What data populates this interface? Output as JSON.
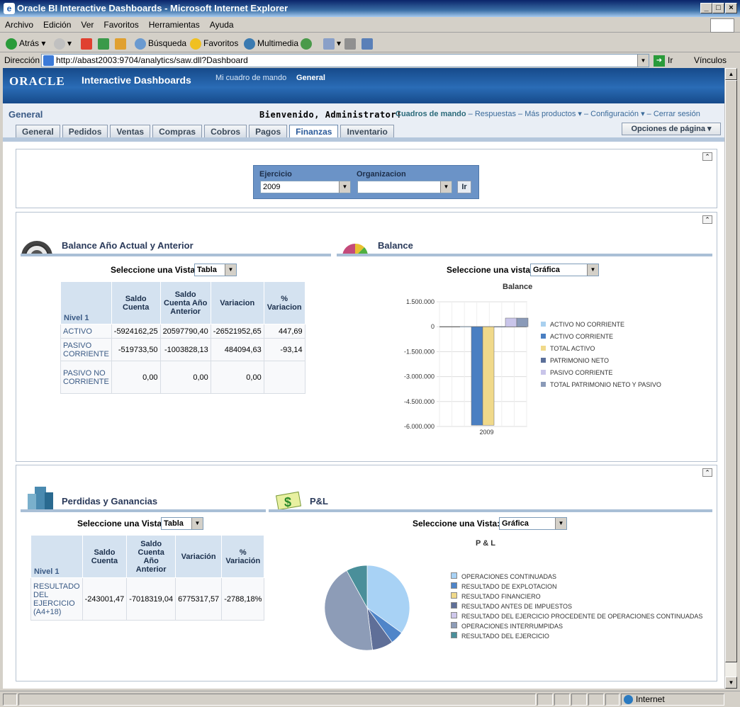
{
  "window": {
    "title": "Oracle BI Interactive Dashboards - Microsoft Internet Explorer"
  },
  "menu": [
    "Archivo",
    "Edición",
    "Ver",
    "Favoritos",
    "Herramientas",
    "Ayuda"
  ],
  "toolbar": {
    "back": "Atrás",
    "search": "Búsqueda",
    "favorites": "Favoritos",
    "media": "Multimedia"
  },
  "address": {
    "label": "Dirección",
    "url": "http://abast2003:9704/analytics/saw.dll?Dashboard",
    "go": "Ir",
    "links": "Vínculos"
  },
  "header": {
    "logo": "ORACLE",
    "app_title": "Interactive Dashboards",
    "my_dashboard": "Mi cuadro de mando",
    "general": "General"
  },
  "subheader": {
    "page_title": "General",
    "welcome": "Bienvenido, Administrator!",
    "links": [
      "Cuadros de mando",
      "Respuestas",
      "Más productos",
      "Configuración",
      "Cerrar sesión"
    ],
    "page_options": "Opciones de página"
  },
  "tabs": [
    "General",
    "Pedidos",
    "Ventas",
    "Compras",
    "Cobros",
    "Pagos",
    "Finanzas",
    "Inventario"
  ],
  "active_tab": "Finanzas",
  "prompt": {
    "ejercicio_label": "Ejercicio",
    "ejercicio_value": "2009",
    "org_label": "Organizacion",
    "org_value": "",
    "go": "Ir"
  },
  "section1": {
    "left_title": "Balance Año Actual y Anterior",
    "left_selector_label": "Seleccione una Vista",
    "left_selector_value": "Tabla",
    "right_title": "Balance",
    "right_selector_label": "Seleccione una vista:",
    "right_selector_value": "Gráfica",
    "table": {
      "headers": [
        "Nivel 1",
        "Saldo Cuenta",
        "Saldo Cuenta Año Anterior",
        "Variacion",
        "% Variacion"
      ],
      "rows": [
        [
          "ACTIVO",
          "-5924162,25",
          "20597790,40",
          "-26521952,65",
          "447,69"
        ],
        [
          "PASIVO CORRIENTE",
          "-519733,50",
          "-1003828,13",
          "484094,63",
          "-93,14"
        ],
        [
          "PASIVO NO CORRIENTE",
          "0,00",
          "0,00",
          "0,00",
          ""
        ]
      ]
    }
  },
  "section2": {
    "left_title": "Perdidas y Ganancias",
    "left_selector_label": "Seleccione una Vista",
    "left_selector_value": "Tabla",
    "right_title": "P&L",
    "right_selector_label": "Seleccione una Vista:",
    "right_selector_value": "Gráfica",
    "table": {
      "headers": [
        "Nivel 1",
        "Saldo Cuenta",
        "Saldo Cuenta Año Anterior",
        "Variación",
        "% Variación"
      ],
      "rows": [
        [
          "RESULTADO DEL EJERCICIO (A4+18)",
          "-243001,47",
          "-7018319,04",
          "6775317,57",
          "-2788,18%"
        ]
      ]
    }
  },
  "chart_data": [
    {
      "type": "bar",
      "title": "Balance",
      "categories": [
        "2009"
      ],
      "ylim": [
        -6000000,
        1500000
      ],
      "ytick_labels": [
        "1.500.000",
        "0",
        "-1.500.000",
        "-3.000.000",
        "-4.500.000",
        "-6.000.000"
      ],
      "yticks": [
        1500000,
        0,
        -1500000,
        -3000000,
        -4500000,
        -6000000
      ],
      "legend_position": "right",
      "grid": true,
      "series": [
        {
          "name": "ACTIVO NO CORRIENTE",
          "values": [
            0
          ],
          "color": "#a9d0ef"
        },
        {
          "name": "ACTIVO CORRIENTE",
          "values": [
            -5924162
          ],
          "color": "#4a7fc2"
        },
        {
          "name": "TOTAL ACTIVO",
          "values": [
            -5924162
          ],
          "color": "#f0d98a"
        },
        {
          "name": "PATRIMONIO NETO",
          "values": [
            0
          ],
          "color": "#5b6f99"
        },
        {
          "name": "PASIVO CORRIENTE",
          "values": [
            519734
          ],
          "color": "#c9c5ea"
        },
        {
          "name": "TOTAL PATRIMONIO NETO Y PASIVO",
          "values": [
            519734
          ],
          "color": "#8a9ab8"
        }
      ]
    },
    {
      "type": "pie",
      "title": "P & L",
      "legend_position": "right",
      "series": [
        {
          "name": "OPERACIONES CONTINUADAS",
          "value": 35,
          "color": "#a8d2f5"
        },
        {
          "name": "RESULTADO DE EXPLOTACION",
          "value": 5,
          "color": "#4f85c9"
        },
        {
          "name": "RESULTADO FINANCIERO",
          "value": 0,
          "color": "#f0d98a"
        },
        {
          "name": "RESULTADO ANTES DE IMPUESTOS",
          "value": 8,
          "color": "#5f6f98"
        },
        {
          "name": "RESULTADO DEL EJERCICIO PROCEDENTE DE OPERACIONES CONTINUADAS",
          "value": 0,
          "color": "#cfc8ec"
        },
        {
          "name": "OPERACIONES INTERRUMPIDAS",
          "value": 44,
          "color": "#8d9cb7"
        },
        {
          "name": "RESULTADO DEL EJERCICIO",
          "value": 8,
          "color": "#4a8f9a"
        }
      ]
    }
  ],
  "status": {
    "zone": "Internet"
  }
}
